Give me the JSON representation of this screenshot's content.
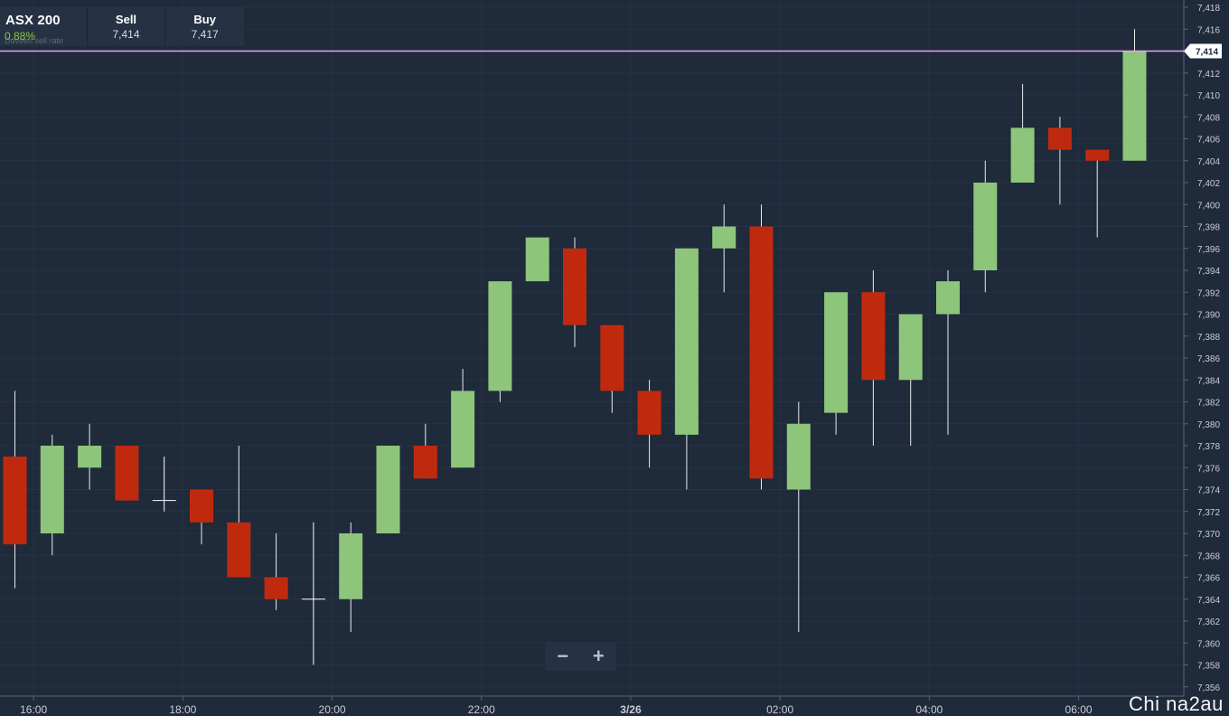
{
  "instrument_panel": {
    "name": "ASX 200",
    "change": "0.88%",
    "note": "Daveen sell rate",
    "sell_label": "Sell",
    "sell_value": "7,414",
    "buy_label": "Buy",
    "buy_value": "7,417"
  },
  "zoom": {
    "minus": "−",
    "plus": "+"
  },
  "watermark": "Chi na2au",
  "colors": {
    "background": "#1f2a3a",
    "up": "#8dc57a",
    "down": "#bf2a0f",
    "price_line": "#e8a6ee",
    "grid": "#263346",
    "axis_text": "#c9ced6"
  },
  "chart_data": {
    "type": "candlestick",
    "title": "",
    "xlabel": "",
    "ylabel": "",
    "ylim": [
      7355,
      7419
    ],
    "grid": true,
    "y_ticks": [
      "7,356",
      "7,358",
      "7,360",
      "7,362",
      "7,364",
      "7,366",
      "7,368",
      "7,370",
      "7,372",
      "7,374",
      "7,376",
      "7,378",
      "7,380",
      "7,382",
      "7,384",
      "7,386",
      "7,388",
      "7,390",
      "7,392",
      "7,394",
      "7,396",
      "7,398",
      "7,400",
      "7,402",
      "7,404",
      "7,406",
      "7,408",
      "7,410",
      "7,412",
      "7,414",
      "7,416",
      "7,418"
    ],
    "x_ticks": [
      {
        "label": "16:00",
        "bold": false,
        "index": 0.5
      },
      {
        "label": "18:00",
        "bold": false,
        "index": 4.5
      },
      {
        "label": "20:00",
        "bold": false,
        "index": 8.5
      },
      {
        "label": "22:00",
        "bold": false,
        "index": 12.5
      },
      {
        "label": "3/26",
        "bold": true,
        "index": 16.5
      },
      {
        "label": "02:00",
        "bold": false,
        "index": 20.5
      },
      {
        "label": "04:00",
        "bold": false,
        "index": 24.5
      },
      {
        "label": "06:00",
        "bold": false,
        "index": 28.5
      }
    ],
    "current_price": 7414,
    "current_price_label": "7,414",
    "candles": [
      {
        "open": 7377,
        "high": 7383,
        "low": 7365,
        "close": 7369
      },
      {
        "open": 7370,
        "high": 7379,
        "low": 7368,
        "close": 7378
      },
      {
        "open": 7376,
        "high": 7380,
        "low": 7374,
        "close": 7378
      },
      {
        "open": 7378,
        "high": 7378,
        "low": 7373,
        "close": 7373
      },
      {
        "open": 7373,
        "high": 7377,
        "low": 7372,
        "close": 7373
      },
      {
        "open": 7374,
        "high": 7374,
        "low": 7369,
        "close": 7371
      },
      {
        "open": 7371,
        "high": 7378,
        "low": 7366,
        "close": 7366
      },
      {
        "open": 7366,
        "high": 7370,
        "low": 7363,
        "close": 7364
      },
      {
        "open": 7364,
        "high": 7371,
        "low": 7358,
        "close": 7364
      },
      {
        "open": 7364,
        "high": 7371,
        "low": 7361,
        "close": 7370
      },
      {
        "open": 7370,
        "high": 7378,
        "low": 7370,
        "close": 7378
      },
      {
        "open": 7378,
        "high": 7380,
        "low": 7375,
        "close": 7375
      },
      {
        "open": 7376,
        "high": 7385,
        "low": 7376,
        "close": 7383
      },
      {
        "open": 7383,
        "high": 7393,
        "low": 7382,
        "close": 7393
      },
      {
        "open": 7393,
        "high": 7397,
        "low": 7393,
        "close": 7397
      },
      {
        "open": 7396,
        "high": 7397,
        "low": 7387,
        "close": 7389
      },
      {
        "open": 7389,
        "high": 7389,
        "low": 7381,
        "close": 7383
      },
      {
        "open": 7383,
        "high": 7384,
        "low": 7376,
        "close": 7379
      },
      {
        "open": 7379,
        "high": 7396,
        "low": 7374,
        "close": 7396
      },
      {
        "open": 7396,
        "high": 7400,
        "low": 7392,
        "close": 7398
      },
      {
        "open": 7398,
        "high": 7400,
        "low": 7374,
        "close": 7375
      },
      {
        "open": 7374,
        "high": 7382,
        "low": 7361,
        "close": 7380
      },
      {
        "open": 7381,
        "high": 7392,
        "low": 7379,
        "close": 7392
      },
      {
        "open": 7392,
        "high": 7394,
        "low": 7378,
        "close": 7384
      },
      {
        "open": 7384,
        "high": 7390,
        "low": 7378,
        "close": 7390
      },
      {
        "open": 7390,
        "high": 7394,
        "low": 7379,
        "close": 7393
      },
      {
        "open": 7394,
        "high": 7404,
        "low": 7392,
        "close": 7402
      },
      {
        "open": 7402,
        "high": 7411,
        "low": 7402,
        "close": 7407
      },
      {
        "open": 7407,
        "high": 7408,
        "low": 7400,
        "close": 7405
      },
      {
        "open": 7405,
        "high": 7405,
        "low": 7397,
        "close": 7404
      },
      {
        "open": 7404,
        "high": 7416,
        "low": 7404,
        "close": 7414
      }
    ]
  }
}
